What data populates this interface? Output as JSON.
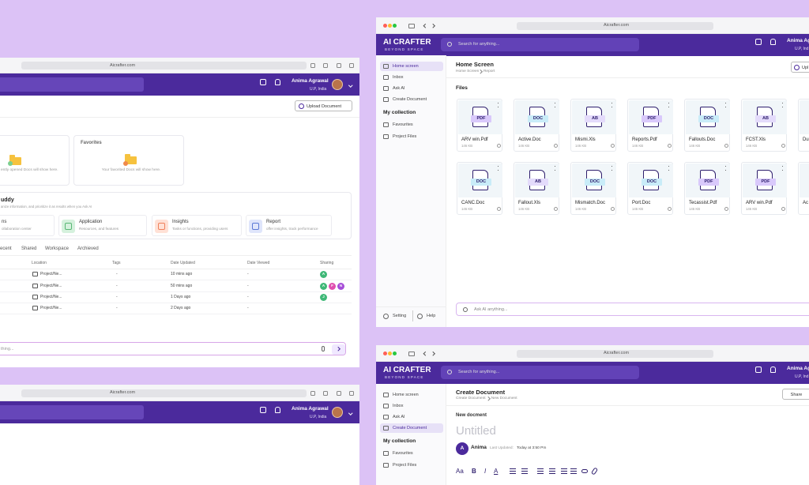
{
  "home_window": {
    "url": "Aicrafter.com",
    "user": {
      "name": "Anima Agrawal",
      "location": "U.P, India"
    },
    "upload_button": "Upload Document",
    "recent_card": {
      "text": "ently opened Docs will show here."
    },
    "favorites_card": {
      "title": "Favorites",
      "text": "Your favorited Docs will show here."
    },
    "buddy": {
      "title": "uddy",
      "subtitle": "anize information, and prioritize it as results when you Ask AI"
    },
    "features": [
      {
        "title": "ns",
        "desc": "ollaboration center"
      },
      {
        "title": "Application",
        "desc": "Resources, and features"
      },
      {
        "title": "Insights",
        "desc": "Tasks or functions, providing users"
      },
      {
        "title": "Report",
        "desc": "offer insights, track performance"
      }
    ],
    "tabs": [
      "ecent",
      "Shared",
      "Workspace",
      "Archieved"
    ],
    "table": {
      "headers": [
        "Location",
        "Tags",
        "Date Updated",
        "Date Viewed",
        "Sharing"
      ],
      "rows": [
        {
          "location": "Project/Ne...",
          "tags": "-",
          "date_updated": "10 mins ago",
          "date_viewed": "-",
          "sharing": [
            "A"
          ]
        },
        {
          "location": "Project/Ne...",
          "tags": "-",
          "date_updated": "50 mins ago",
          "date_viewed": "-",
          "sharing": [
            "A",
            "F",
            "N"
          ]
        },
        {
          "location": "Project/Ne...",
          "tags": "-",
          "date_updated": "1 Days ago",
          "date_viewed": "-",
          "sharing": [
            "J"
          ]
        },
        {
          "location": "Project/Ne...",
          "tags": "-",
          "date_updated": "2 Days ago",
          "date_viewed": "-",
          "sharing": []
        }
      ]
    },
    "ask_placeholder": "thing..."
  },
  "second_window": {
    "url": "Aicrafter.com",
    "user": {
      "name": "Anima Agrawal",
      "location": "U.P, India"
    }
  },
  "files_window": {
    "url": "Aicrafter.com",
    "brand": {
      "name": "AI CRAFTER",
      "tagline": "BEYOND SPACE"
    },
    "search_placeholder": "Search for anything...",
    "user": {
      "name": "Anima Ag",
      "location": "U.P, Ind"
    },
    "sidebar": {
      "items": [
        "Home screen",
        "Inbox",
        "Ask AI",
        "Create Document"
      ],
      "collection_title": "My collection",
      "collection_items": [
        "Favourites",
        "Project Files"
      ],
      "footer": [
        "Setting",
        "Help"
      ]
    },
    "page_title": "Home Screen",
    "breadcrumb": [
      "Home Screen",
      "Report"
    ],
    "upload_button": "Upl",
    "section_title": "Files",
    "files": [
      [
        {
          "name": "ARV win.Pdf",
          "type": "PDF",
          "size": "146 KB"
        },
        {
          "name": "Active.Doc",
          "type": "DOC",
          "size": "146 KB"
        },
        {
          "name": "Mismi.Xls",
          "type": "AB",
          "size": "146 KB"
        },
        {
          "name": "Reports.Pdf",
          "type": "PDF",
          "size": "146 KB"
        },
        {
          "name": "Fallouts.Doc",
          "type": "DOC",
          "size": "146 KB"
        },
        {
          "name": "FCST.Xls",
          "type": "AB",
          "size": "146 KB"
        },
        {
          "name": "Du"
        }
      ],
      [
        {
          "name": "CANC.Doc",
          "type": "DOC",
          "size": "146 KB"
        },
        {
          "name": "Fallout.Xls",
          "type": "AB",
          "size": "146 KB"
        },
        {
          "name": "Mismatch.Doc",
          "type": "DOC",
          "size": "146 KB"
        },
        {
          "name": "Port.Doc",
          "type": "DOC",
          "size": "146 KB"
        },
        {
          "name": "Tecassist.Pdf",
          "type": "PDF",
          "size": "146 KB"
        },
        {
          "name": "ARV win.Pdf",
          "type": "PDF",
          "size": "146 KB"
        },
        {
          "name": "Ac"
        }
      ]
    ],
    "ask_placeholder": "Ask AI anything..."
  },
  "editor_window": {
    "url": "Aicrafter.com",
    "brand": {
      "name": "AI CRAFTER",
      "tagline": "BEYOND SPACE"
    },
    "search_placeholder": "Search for anything...",
    "user": {
      "name": "Anima Ag",
      "location": "U.P, Ind"
    },
    "sidebar": {
      "items": [
        "Home screen",
        "Inbox",
        "Ask AI",
        "Create Document"
      ],
      "collection_title": "My collection",
      "collection_items": [
        "Favourites",
        "Project Files"
      ]
    },
    "page_title": "Create Document",
    "breadcrumb": [
      "Create Document",
      "New Document"
    ],
    "share_button": "Share",
    "doc_label": "New docment",
    "doc_title": "Untitled",
    "author": {
      "initial": "A",
      "name": "Anima",
      "updated_label": "Last Updated:",
      "updated": "Today at 3:50 Pm"
    },
    "toolbar": [
      "Aa",
      "B",
      "I",
      "A"
    ]
  }
}
